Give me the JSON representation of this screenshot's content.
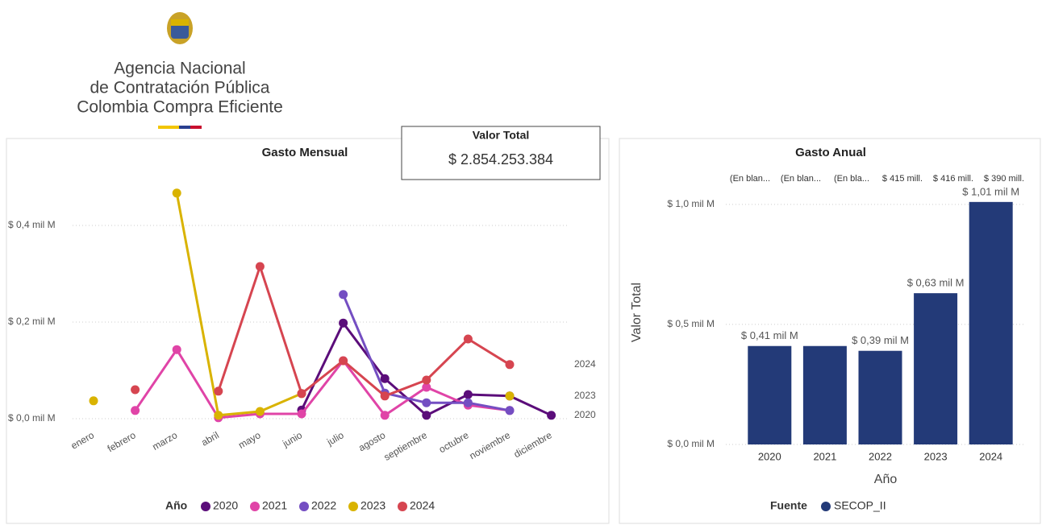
{
  "header": {
    "lines": [
      "Agencia Nacional",
      "de Contratación Pública",
      "Colombia Compra Eficiente"
    ]
  },
  "card": {
    "title": "Valor Total",
    "value": "$ 2.854.253.384"
  },
  "chart_data": [
    {
      "type": "line",
      "title": "Gasto Mensual",
      "categories": [
        "enero",
        "febrero",
        "marzo",
        "abril",
        "mayo",
        "junio",
        "julio",
        "agosto",
        "septiembre",
        "octubre",
        "noviembre",
        "diciembre"
      ],
      "series": [
        {
          "name": "2020",
          "color": "#5b0d7a",
          "values": [
            null,
            null,
            null,
            null,
            null,
            0.018,
            0.198,
            0.083,
            0.007,
            0.05,
            0.047,
            0.007
          ]
        },
        {
          "name": "2021",
          "color": "#e044a7",
          "values": [
            null,
            0.017,
            0.143,
            0.002,
            0.01,
            0.01,
            0.12,
            0.007,
            0.065,
            0.028,
            0.017,
            null
          ]
        },
        {
          "name": "2022",
          "color": "#744ec2",
          "values": [
            null,
            null,
            null,
            null,
            null,
            null,
            0.257,
            0.053,
            0.033,
            0.033,
            0.017,
            null
          ]
        },
        {
          "name": "2023",
          "color": "#d9b300",
          "values": [
            0.037,
            null,
            0.467,
            0.007,
            0.015,
            0.052,
            null,
            null,
            null,
            null,
            0.047,
            null
          ]
        },
        {
          "name": "2024",
          "color": "#d64550",
          "values": [
            null,
            0.06,
            null,
            0.057,
            0.315,
            0.052,
            0.12,
            0.047,
            0.08,
            0.165,
            0.112,
            null
          ]
        }
      ],
      "series_labels": [
        "2024",
        "2023",
        "2020"
      ],
      "ylim": [
        0,
        0.5
      ],
      "yticks": [
        {
          "value": 0,
          "label": "$ 0,0 mil M"
        },
        {
          "value": 0.2,
          "label": "$ 0,2 mil M"
        },
        {
          "value": 0.4,
          "label": "$ 0,4 mil M"
        }
      ],
      "grid": true,
      "legend_title": "Año",
      "legend": "bottom"
    },
    {
      "type": "bar",
      "title": "Gasto Anual",
      "x_label": "Año",
      "y_label": "Valor Total",
      "categories": [
        "2020",
        "2021",
        "2022",
        "2023",
        "2024"
      ],
      "values": [
        0.41,
        0.41,
        0.39,
        0.63,
        1.01
      ],
      "value_labels": [
        "$ 0,41 mil M",
        null,
        "$ 0,39 mil M",
        "$ 0,63 mil M",
        "$ 1,01 mil M"
      ],
      "annotations": [
        "(En blan...",
        "(En blan...",
        "(En bla...",
        "$ 415 mill.",
        "$ 416 mill.",
        "$ 390 mill."
      ],
      "color": "#233a78",
      "ylim": [
        0,
        1.1
      ],
      "yticks": [
        {
          "value": 0,
          "label": "$ 0,0 mil M"
        },
        {
          "value": 0.5,
          "label": "$ 0,5 mil M"
        },
        {
          "value": 1.0,
          "label": "$ 1,0 mil M"
        }
      ],
      "grid": true,
      "legend_title": "Fuente",
      "legend_entries": [
        "SECOP_II"
      ],
      "legend": "bottom"
    }
  ]
}
